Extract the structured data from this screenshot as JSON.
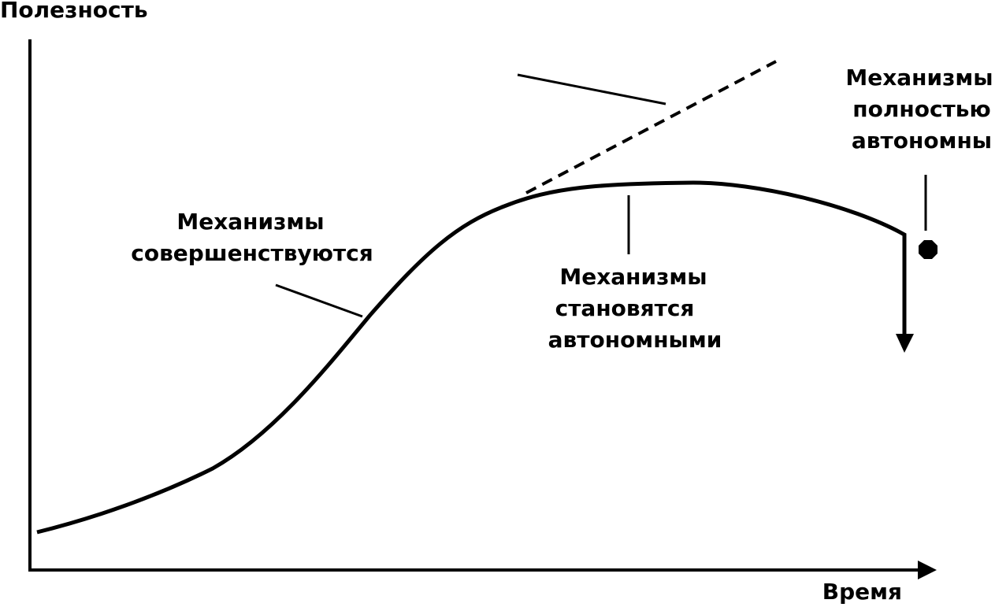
{
  "axes": {
    "y_label": "Полезность",
    "x_label": "Время"
  },
  "annotations": [
    {
      "lines": [
        "Механизмы",
        "совершенствуются"
      ]
    },
    {
      "lines": [
        "Механизмы",
        "становятся",
        "автономными"
      ]
    },
    {
      "lines": [
        "Механизмы",
        "полностью",
        "автономны"
      ]
    }
  ]
}
